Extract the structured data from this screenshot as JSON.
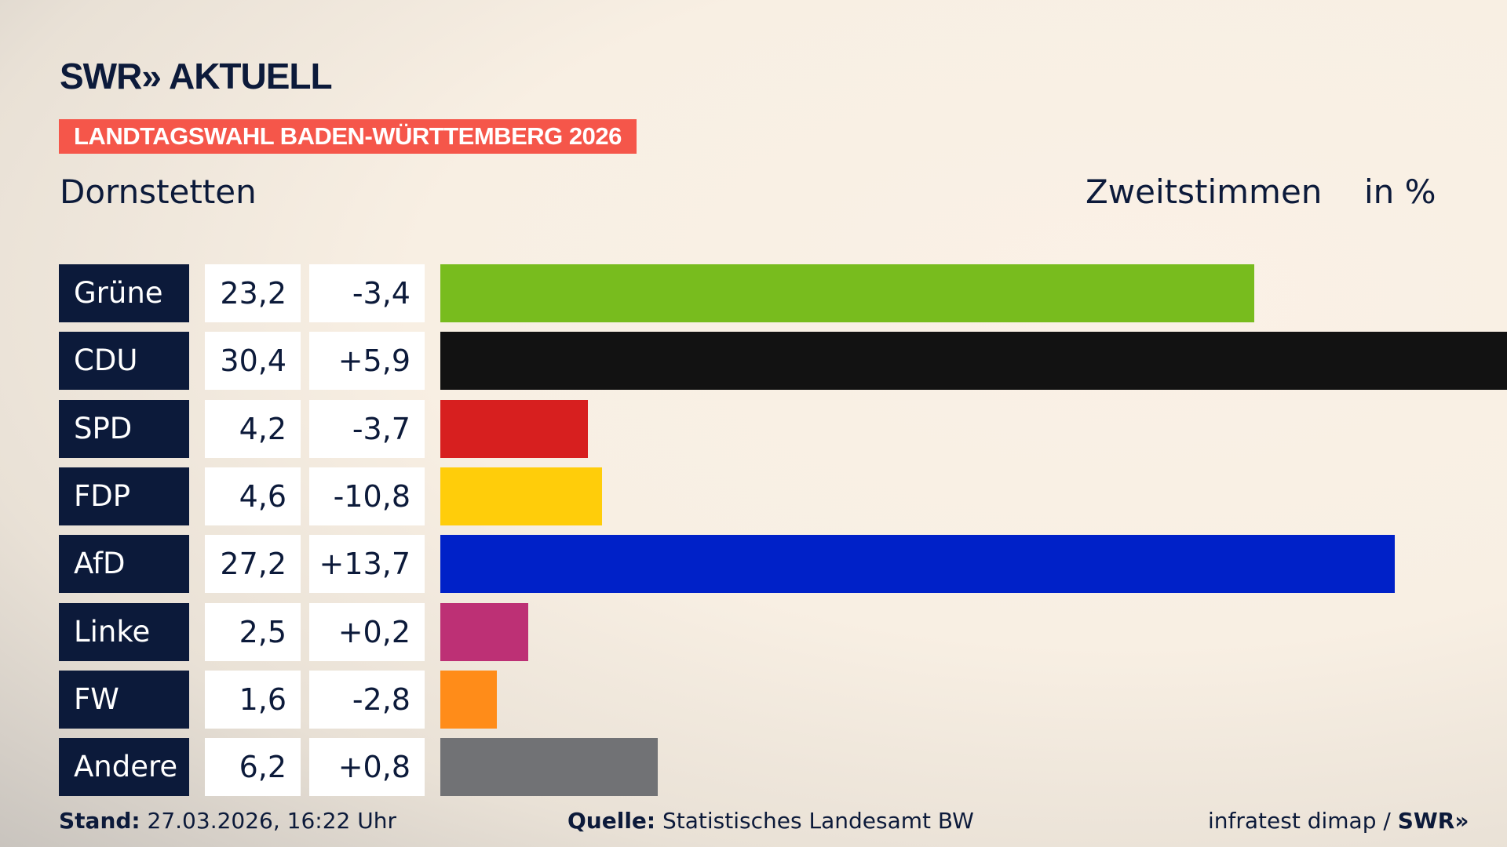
{
  "logo": "SWR» AKTUELL",
  "banner": "LANDTAGSWAHL BADEN-WÜRTTEMBERG 2026",
  "location": "Dornstetten",
  "vote_type": "Zweitstimmen",
  "unit": "in %",
  "chart_data": {
    "type": "bar",
    "orientation": "horizontal",
    "categories": [
      "Grüne",
      "CDU",
      "SPD",
      "FDP",
      "AfD",
      "Linke",
      "FW",
      "Andere"
    ],
    "values": [
      23.2,
      30.4,
      4.2,
      4.6,
      27.2,
      2.5,
      1.6,
      6.2
    ],
    "values_label": [
      "23,2",
      "30,4",
      "4,2",
      "4,6",
      "27,2",
      "2,5",
      "1,6",
      "6,2"
    ],
    "changes": [
      -3.4,
      5.9,
      -3.7,
      -10.8,
      13.7,
      0.2,
      -2.8,
      0.8
    ],
    "changes_label": [
      "-3,4",
      "+5,9",
      "-3,7",
      "-10,8",
      "+13,7",
      "+0,2",
      "-2,8",
      "+0,8"
    ],
    "colors": [
      "#78bc1e",
      "#121212",
      "#d71f1f",
      "#ffcd0a",
      "#0021c8",
      "#bd3075",
      "#ff8c19",
      "#717275"
    ],
    "xlim": [
      0,
      30.4
    ]
  },
  "footer": {
    "stand_label": "Stand:",
    "stand_value": "27.03.2026, 16:22 Uhr",
    "source_label": "Quelle:",
    "source_value": "Statistisches Landesamt BW",
    "credit": "infratest dimap / ",
    "credit_logo": "SWR»"
  }
}
